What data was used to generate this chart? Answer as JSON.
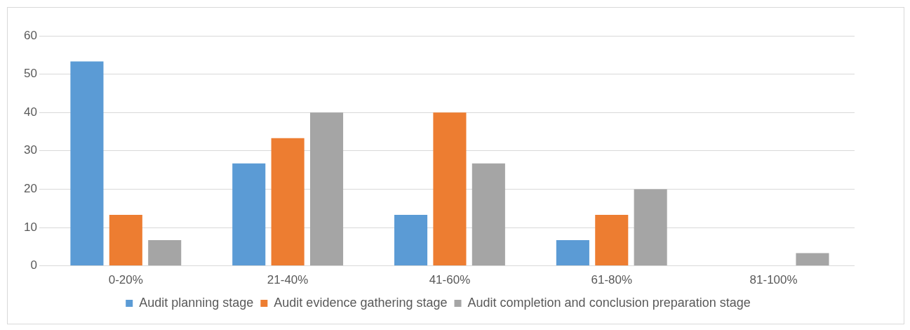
{
  "chart_data": {
    "type": "bar",
    "categories": [
      "0-20%",
      "21-40%",
      "41-60%",
      "61-80%",
      "81-100%"
    ],
    "series": [
      {
        "name": "Audit planning stage",
        "color": "#5b9bd5",
        "values": [
          53.3,
          26.7,
          13.3,
          6.7,
          0
        ]
      },
      {
        "name": "Audit evidence gathering stage",
        "color": "#ed7d31",
        "values": [
          13.3,
          33.3,
          40,
          13.3,
          0
        ]
      },
      {
        "name": "Audit completion and conclusion preparation stage",
        "color": "#a5a5a5",
        "values": [
          6.7,
          40,
          26.7,
          20,
          3.3
        ]
      }
    ],
    "ylim": [
      0,
      60
    ],
    "yticks": [
      0,
      10,
      20,
      30,
      40,
      50,
      60
    ],
    "grid": "y",
    "legend": "bottom"
  }
}
